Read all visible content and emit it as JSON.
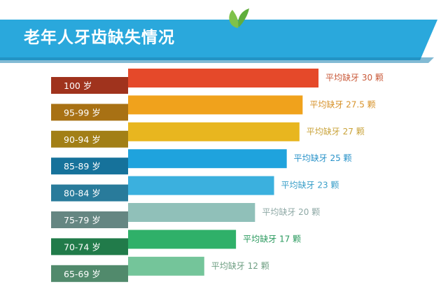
{
  "title": "老年人牙齿缺失情况",
  "chart_data": {
    "type": "bar",
    "orientation": "horizontal",
    "title": "老年人牙齿缺失情况",
    "categories": [
      "100 岁",
      "95-99 岁",
      "90-94 岁",
      "85-89 岁",
      "80-84 岁",
      "75-79 岁",
      "70-74 岁",
      "65-69 岁"
    ],
    "values": [
      30,
      27.5,
      27,
      25,
      23,
      20,
      17,
      12
    ],
    "value_labels": [
      "平均缺牙 30 颗",
      "平均缺牙 27.5 颗",
      "平均缺牙 27 颗",
      "平均缺牙 25 颗",
      "平均缺牙 23 颗",
      "平均缺牙 20 颗",
      "平均缺牙 17 颗",
      "平均缺牙 12 颗"
    ],
    "colors": [
      "#e5492a",
      "#f0a21c",
      "#e8b61f",
      "#1fa3dd",
      "#3bb0de",
      "#90c0b9",
      "#2fb069",
      "#74c59a"
    ],
    "label_colors": [
      "#c95a3a",
      "#d7932b",
      "#c9a33a",
      "#2a93c9",
      "#3a9fc9",
      "#8fa9a6",
      "#2a9a5e",
      "#6f9f83"
    ],
    "grid": false,
    "legend": "none"
  },
  "banner_color": "#2aa8dc",
  "leaf_color": "#7fc24a"
}
